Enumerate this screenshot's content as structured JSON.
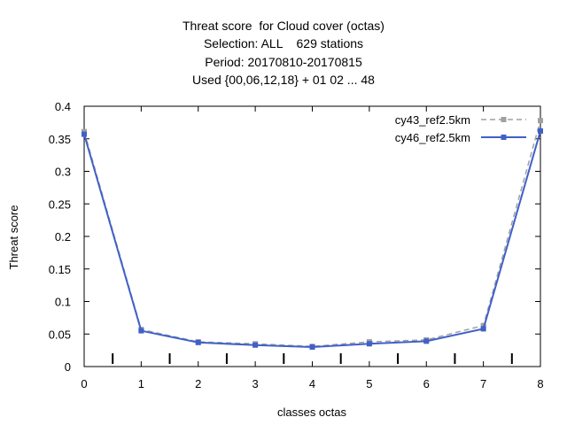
{
  "chart_data": {
    "type": "line",
    "title_lines": [
      "Threat score  for Cloud cover (octas)",
      "Selection: ALL    629 stations",
      "Period: 20170810-20170815",
      "Used {00,06,12,18} + 01 02 ... 48"
    ],
    "xlabel": "classes octas",
    "ylabel": "Threat score",
    "xlim": [
      0,
      8
    ],
    "ylim": [
      0,
      0.4
    ],
    "x": [
      0,
      1,
      2,
      3,
      4,
      5,
      6,
      7,
      8
    ],
    "x_ticks": [
      "0",
      "1",
      "2",
      "3",
      "4",
      "5",
      "6",
      "7",
      "8"
    ],
    "y_ticks": [
      "0",
      "0.05",
      "0.1",
      "0.15",
      "0.2",
      "0.25",
      "0.3",
      "0.35",
      "0.4"
    ],
    "y_tick_values": [
      0,
      0.05,
      0.1,
      0.15,
      0.2,
      0.25,
      0.3,
      0.35,
      0.4
    ],
    "minor_marks_x": [
      0.5,
      1.5,
      2.5,
      3.5,
      4.5,
      5.5,
      6.5,
      7.5
    ],
    "grid": false,
    "legend_position": "top-right",
    "series": [
      {
        "name": "cy43_ref2.5km",
        "color": "#a0a0a0",
        "dashed": true,
        "values": [
          0.361,
          0.057,
          0.038,
          0.035,
          0.031,
          0.038,
          0.041,
          0.063,
          0.378
        ]
      },
      {
        "name": "cy46_ref2.5km",
        "color": "#4060c8",
        "dashed": false,
        "values": [
          0.357,
          0.055,
          0.037,
          0.033,
          0.03,
          0.035,
          0.039,
          0.058,
          0.362
        ]
      }
    ]
  }
}
